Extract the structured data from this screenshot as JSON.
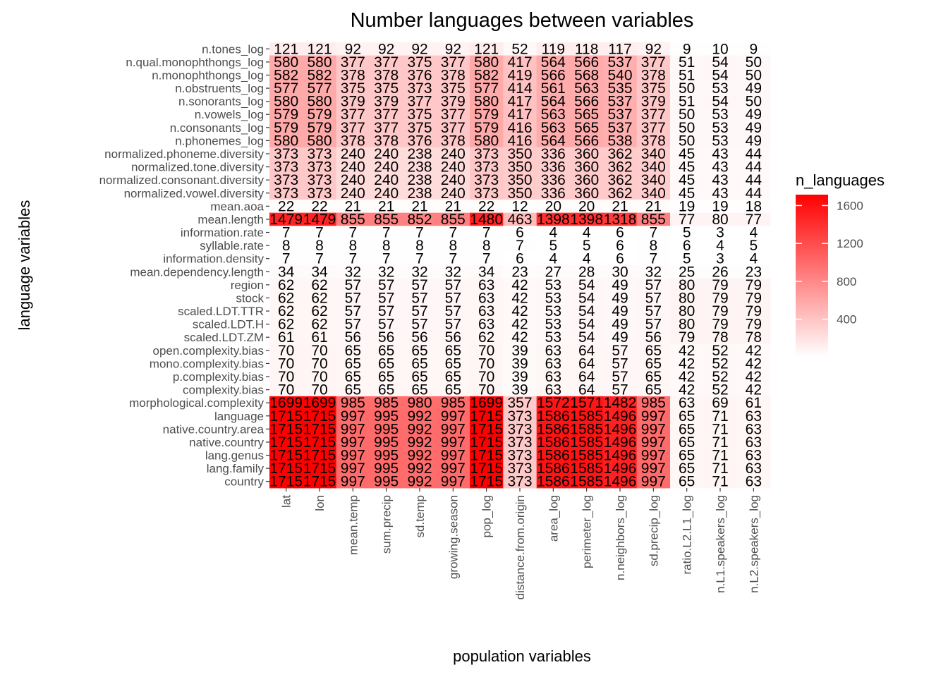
{
  "chart_data": {
    "type": "heatmap",
    "title": "Number languages between variables",
    "xlabel": "population variables",
    "ylabel": "language variables",
    "x_categories": [
      "lat",
      "lon",
      "mean.temp",
      "sum.precip",
      "sd.temp",
      "growing.season",
      "pop_log",
      "distance.from.origin",
      "area_log",
      "perimeter_log",
      "n.neighbors_log",
      "sd.precip_log",
      "ratio.L2.L1_log",
      "n.L1.speakers_log",
      "n.L2.speakers_log"
    ],
    "y_categories": [
      "n.tones_log",
      "n.qual.monophthongs_log",
      "n.monophthongs_log",
      "n.obstruents_log",
      "n.sonorants_log",
      "n.vowels_log",
      "n.consonants_log",
      "n.phonemes_log",
      "normalized.phoneme.diversity",
      "normalized.tone.diversity",
      "normalized.consonant.diversity",
      "normalized.vowel.diversity",
      "mean.aoa",
      "mean.length",
      "information.rate",
      "syllable.rate",
      "information.density",
      "mean.dependency.length",
      "region",
      "stock",
      "scaled.LDT.TTR",
      "scaled.LDT.H",
      "scaled.LDT.ZM",
      "open.complexity.bias",
      "mono.complexity.bias",
      "p.complexity.bias",
      "complexity.bias",
      "morphological.complexity",
      "language",
      "native.country.area",
      "native.country",
      "lang.genus",
      "lang.family",
      "country"
    ],
    "values": [
      [
        121,
        121,
        92,
        92,
        92,
        92,
        121,
        52,
        119,
        118,
        117,
        92,
        9,
        10,
        9
      ],
      [
        580,
        580,
        377,
        377,
        375,
        377,
        580,
        417,
        564,
        566,
        537,
        377,
        51,
        54,
        50
      ],
      [
        582,
        582,
        378,
        378,
        376,
        378,
        582,
        419,
        566,
        568,
        540,
        378,
        51,
        54,
        50
      ],
      [
        577,
        577,
        375,
        375,
        373,
        375,
        577,
        414,
        561,
        563,
        535,
        375,
        50,
        53,
        49
      ],
      [
        580,
        580,
        379,
        379,
        377,
        379,
        580,
        417,
        564,
        566,
        537,
        379,
        51,
        54,
        50
      ],
      [
        579,
        579,
        377,
        377,
        375,
        377,
        579,
        417,
        563,
        565,
        537,
        377,
        50,
        53,
        49
      ],
      [
        579,
        579,
        377,
        377,
        375,
        377,
        579,
        416,
        563,
        565,
        537,
        377,
        50,
        53,
        49
      ],
      [
        580,
        580,
        378,
        378,
        376,
        378,
        580,
        416,
        564,
        566,
        538,
        378,
        50,
        53,
        49
      ],
      [
        373,
        373,
        240,
        240,
        238,
        240,
        373,
        350,
        336,
        360,
        362,
        340,
        45,
        43,
        44
      ],
      [
        373,
        373,
        240,
        240,
        238,
        240,
        373,
        350,
        336,
        360,
        362,
        340,
        45,
        43,
        44
      ],
      [
        373,
        373,
        240,
        240,
        238,
        240,
        373,
        350,
        336,
        360,
        362,
        340,
        45,
        43,
        44
      ],
      [
        373,
        373,
        240,
        240,
        238,
        240,
        373,
        350,
        336,
        360,
        362,
        340,
        45,
        43,
        44
      ],
      [
        22,
        22,
        21,
        21,
        21,
        21,
        22,
        12,
        20,
        20,
        21,
        21,
        19,
        19,
        18
      ],
      [
        1479,
        1479,
        855,
        855,
        852,
        855,
        1480,
        463,
        1398,
        1398,
        1318,
        855,
        77,
        80,
        77
      ],
      [
        7,
        7,
        7,
        7,
        7,
        7,
        7,
        6,
        4,
        4,
        6,
        7,
        5,
        3,
        4
      ],
      [
        8,
        8,
        8,
        8,
        8,
        8,
        8,
        7,
        5,
        5,
        6,
        8,
        6,
        4,
        5
      ],
      [
        7,
        7,
        7,
        7,
        7,
        7,
        7,
        6,
        4,
        4,
        6,
        7,
        5,
        3,
        4
      ],
      [
        34,
        34,
        32,
        32,
        32,
        32,
        34,
        23,
        27,
        28,
        30,
        32,
        25,
        26,
        23
      ],
      [
        62,
        62,
        57,
        57,
        57,
        57,
        63,
        42,
        53,
        54,
        49,
        57,
        80,
        79,
        79
      ],
      [
        62,
        62,
        57,
        57,
        57,
        57,
        63,
        42,
        53,
        54,
        49,
        57,
        80,
        79,
        79
      ],
      [
        62,
        62,
        57,
        57,
        57,
        57,
        63,
        42,
        53,
        54,
        49,
        57,
        80,
        79,
        79
      ],
      [
        62,
        62,
        57,
        57,
        57,
        57,
        63,
        42,
        53,
        54,
        49,
        57,
        80,
        79,
        79
      ],
      [
        61,
        61,
        56,
        56,
        56,
        56,
        62,
        42,
        53,
        54,
        49,
        56,
        79,
        78,
        78
      ],
      [
        70,
        70,
        65,
        65,
        65,
        65,
        70,
        39,
        63,
        64,
        57,
        65,
        42,
        52,
        42
      ],
      [
        70,
        70,
        65,
        65,
        65,
        65,
        70,
        39,
        63,
        64,
        57,
        65,
        42,
        52,
        42
      ],
      [
        70,
        70,
        65,
        65,
        65,
        65,
        70,
        39,
        63,
        64,
        57,
        65,
        42,
        52,
        42
      ],
      [
        70,
        70,
        65,
        65,
        65,
        65,
        70,
        39,
        63,
        64,
        57,
        65,
        42,
        52,
        42
      ],
      [
        1699,
        1699,
        985,
        985,
        980,
        985,
        1699,
        357,
        1572,
        1571,
        1482,
        985,
        63,
        69,
        61
      ],
      [
        1715,
        1715,
        997,
        995,
        992,
        997,
        1715,
        373,
        1586,
        1585,
        1496,
        997,
        65,
        71,
        63
      ],
      [
        1715,
        1715,
        997,
        995,
        992,
        997,
        1715,
        373,
        1586,
        1585,
        1496,
        997,
        65,
        71,
        63
      ],
      [
        1715,
        1715,
        997,
        995,
        992,
        997,
        1715,
        373,
        1586,
        1585,
        1496,
        997,
        65,
        71,
        63
      ],
      [
        1715,
        1715,
        997,
        995,
        992,
        997,
        1715,
        373,
        1586,
        1585,
        1496,
        997,
        65,
        71,
        63
      ],
      [
        1715,
        1715,
        997,
        995,
        992,
        997,
        1715,
        373,
        1586,
        1585,
        1496,
        997,
        65,
        71,
        63
      ],
      [
        1715,
        1715,
        997,
        995,
        992,
        997,
        1715,
        373,
        1586,
        1585,
        1496,
        997,
        65,
        71,
        63
      ]
    ],
    "color_scale": {
      "low": "#ffffff",
      "high": "#ff0000",
      "min": 3,
      "max": 1715
    },
    "panel_background": "#ebebeb",
    "legend": {
      "title": "n_languages",
      "position": "right",
      "ticks": [
        400,
        800,
        1200,
        1600
      ]
    }
  }
}
